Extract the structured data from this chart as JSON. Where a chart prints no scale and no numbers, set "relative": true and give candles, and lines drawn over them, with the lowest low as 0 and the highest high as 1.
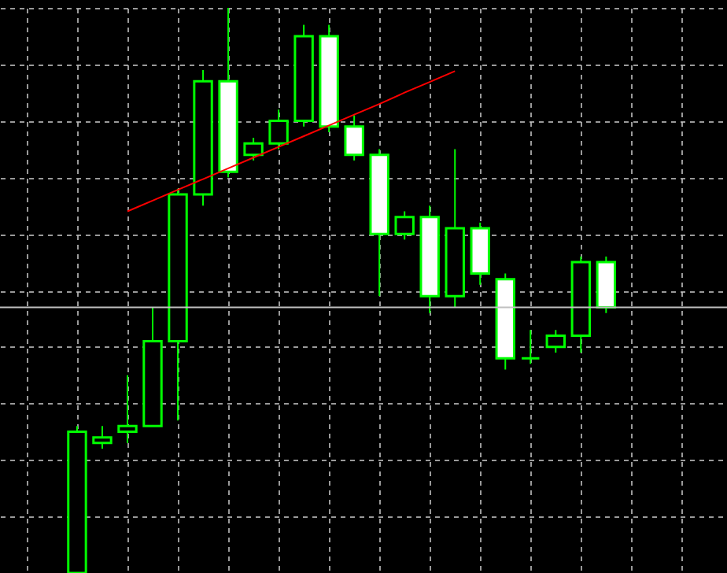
{
  "chart_data": {
    "type": "candlestick",
    "relative": true,
    "grid": true,
    "categories": [
      null,
      null,
      null,
      null,
      null,
      null,
      null,
      null,
      null,
      null,
      null,
      null,
      null,
      null,
      null,
      null,
      null,
      null,
      null,
      null,
      null,
      null
    ],
    "series": [
      {
        "type": "candlestick",
        "color": "#00ff00",
        "ohlc": [
          [
            0,
            0.26,
            0,
            0.25
          ],
          [
            0.23,
            0.26,
            0.22,
            0.24
          ],
          [
            0.25,
            0.35,
            0.23,
            0.26
          ],
          [
            0.26,
            0.47,
            0.26,
            0.41
          ],
          [
            0.41,
            0.68,
            0.27,
            0.67
          ],
          [
            0.67,
            0.89,
            0.65,
            0.87
          ],
          [
            0.87,
            1,
            0.7,
            0.71
          ],
          [
            0.74,
            0.77,
            0.73,
            0.76
          ],
          [
            0.76,
            0.82,
            0.75,
            0.8
          ],
          [
            0.8,
            0.97,
            0.79,
            0.95
          ],
          [
            0.95,
            0.97,
            0.78,
            0.79
          ],
          [
            0.79,
            0.81,
            0.73,
            0.74
          ],
          [
            0.74,
            0.75,
            0.49,
            0.6
          ],
          [
            0.6,
            0.64,
            0.59,
            0.63
          ],
          [
            0.63,
            0.65,
            0.46,
            0.49
          ],
          [
            0.49,
            0.75,
            0.47,
            0.61
          ],
          [
            0.61,
            0.62,
            0.51,
            0.53
          ],
          [
            0.52,
            0.53,
            0.36,
            0.38
          ],
          [
            0.38,
            0.43,
            0.37,
            0.38
          ],
          [
            0.4,
            0.43,
            0.39,
            0.42
          ],
          [
            0.42,
            0.56,
            0.39,
            0.55
          ],
          [
            0.55,
            0.56,
            0.46,
            0.47
          ]
        ]
      },
      {
        "type": "line",
        "color": "#ff0000",
        "values": [
          null,
          null,
          0.64,
          0.659,
          0.678,
          0.697,
          0.716,
          0.735,
          0.754,
          0.773,
          0.792,
          0.811,
          0.83,
          0.85,
          0.869,
          0.888,
          null,
          null,
          null,
          null,
          null,
          null
        ]
      }
    ],
    "ref_lines": [
      {
        "axis": "y",
        "value": 0.47,
        "color": "#c0c0c0"
      }
    ]
  }
}
